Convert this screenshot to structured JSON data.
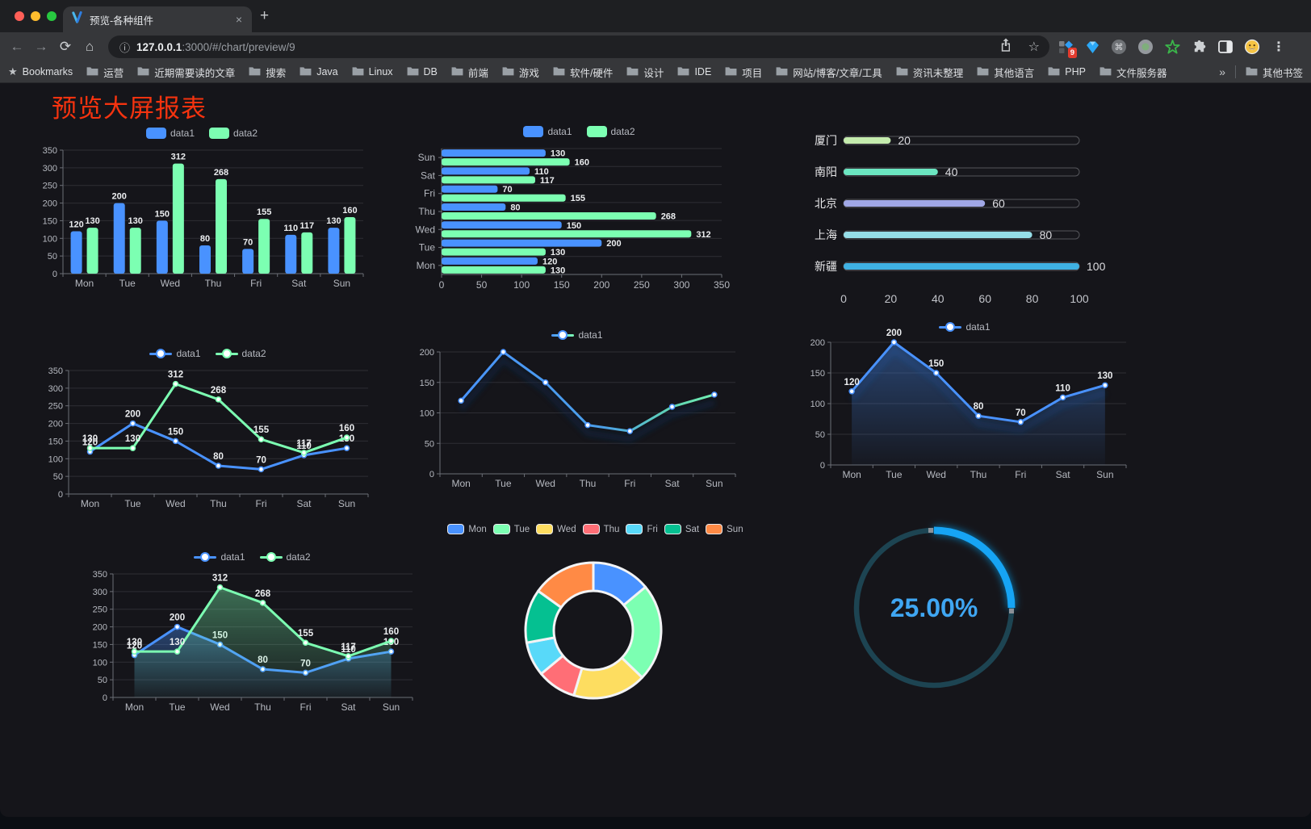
{
  "browser": {
    "tab_title": "预览-各种组件",
    "close_tab_label": "×",
    "new_tab_label": "+",
    "url_host": "127.0.0.1",
    "url_rest": ":3000/#/chart/preview/9",
    "extension_badge": "9",
    "bookmarks_label": "Bookmarks",
    "bookmark_folders": [
      "运营",
      "近期需要读的文章",
      "搜索",
      "Java",
      "Linux",
      "DB",
      "前端",
      "游戏",
      "软件/硬件",
      "设计",
      "IDE",
      "项目",
      "网站/博客/文章/工具",
      "资讯未整理",
      "其他语言",
      "PHP",
      "文件服务器"
    ],
    "overflow_chevron": "»",
    "other_bookmarks": "其他书签"
  },
  "page": {
    "title": "预览大屏报表",
    "title_color": "#f5330f"
  },
  "colors": {
    "data1": "#4992ff",
    "data2": "#7cffb2",
    "axis": "#6b6e76",
    "grid": "#2e2e34",
    "tick_label": "#b6b9c0",
    "value_label": "#eceef0",
    "gauge_progress": "#18a4f4",
    "gauge_track": "#1d4452",
    "gauge_text": "#3fa6f2"
  },
  "chart_data": [
    {
      "id": "grouped-bar",
      "type": "bar",
      "legend_position": "top",
      "grid": true,
      "value_labels": true,
      "categories": [
        "Mon",
        "Tue",
        "Wed",
        "Thu",
        "Fri",
        "Sat",
        "Sun"
      ],
      "series": [
        {
          "name": "data1",
          "color": "#4992ff",
          "values": [
            120,
            200,
            150,
            80,
            70,
            110,
            130
          ]
        },
        {
          "name": "data2",
          "color": "#7cffb2",
          "values": [
            130,
            130,
            312,
            268,
            155,
            117,
            160
          ]
        }
      ],
      "ylim": [
        0,
        350
      ],
      "yticks": [
        0,
        50,
        100,
        150,
        200,
        250,
        300,
        350
      ]
    },
    {
      "id": "horizontal-bar",
      "type": "bar",
      "orientation": "horizontal",
      "legend_position": "top",
      "value_labels": true,
      "categories_top_to_bottom": [
        "Sun",
        "Sat",
        "Fri",
        "Thu",
        "Wed",
        "Tue",
        "Mon"
      ],
      "series": [
        {
          "name": "data1",
          "color": "#4992ff",
          "values_top_to_bottom": [
            130,
            110,
            70,
            80,
            150,
            200,
            120
          ]
        },
        {
          "name": "data2",
          "color": "#7cffb2",
          "values_top_to_bottom": [
            160,
            117,
            155,
            268,
            312,
            130,
            130
          ]
        }
      ],
      "xlim": [
        0,
        350
      ],
      "xticks": [
        0,
        50,
        100,
        150,
        200,
        250,
        300,
        350
      ]
    },
    {
      "id": "progress-bars",
      "type": "bar",
      "style": "progress",
      "value_labels": true,
      "categories": [
        "厦门",
        "南阳",
        "北京",
        "上海",
        "新疆"
      ],
      "values": [
        20,
        40,
        60,
        80,
        100
      ],
      "colors": [
        "#c4ebad",
        "#6be6c1",
        "#a0a7e6",
        "#96dee8",
        "#3fb1e3"
      ],
      "xlim": [
        0,
        100
      ],
      "xticks": [
        0,
        20,
        40,
        60,
        80,
        100
      ]
    },
    {
      "id": "line-two-series",
      "type": "line",
      "legend_position": "top",
      "value_labels": true,
      "categories": [
        "Mon",
        "Tue",
        "Wed",
        "Thu",
        "Fri",
        "Sat",
        "Sun"
      ],
      "series": [
        {
          "name": "data1",
          "color": "#4992ff",
          "values": [
            120,
            200,
            150,
            80,
            70,
            110,
            130
          ]
        },
        {
          "name": "data2",
          "color": "#7cffb2",
          "values": [
            130,
            130,
            312,
            268,
            155,
            117,
            160
          ]
        }
      ],
      "ylim": [
        0,
        350
      ],
      "yticks": [
        0,
        50,
        100,
        150,
        200,
        250,
        300,
        350
      ]
    },
    {
      "id": "line-gradient",
      "type": "line",
      "legend_position": "top",
      "value_labels": false,
      "shadow": true,
      "categories": [
        "Mon",
        "Tue",
        "Wed",
        "Thu",
        "Fri",
        "Sat",
        "Sun"
      ],
      "series": [
        {
          "name": "data1",
          "color": "#4992ff",
          "color_gradient": [
            "#4992ff",
            "#4b9fe8",
            "#5fd3b4",
            "#7cffb2"
          ],
          "values": [
            120,
            200,
            150,
            80,
            70,
            110,
            130
          ]
        }
      ],
      "ylim": [
        0,
        200
      ],
      "yticks": [
        0,
        50,
        100,
        150,
        200
      ]
    },
    {
      "id": "area-single",
      "type": "area",
      "legend_position": "top",
      "value_labels": true,
      "shadow": true,
      "categories": [
        "Mon",
        "Tue",
        "Wed",
        "Thu",
        "Fri",
        "Sat",
        "Sun"
      ],
      "series": [
        {
          "name": "data1",
          "color": "#4992ff",
          "values": [
            120,
            200,
            150,
            80,
            70,
            110,
            130
          ]
        }
      ],
      "ylim": [
        0,
        200
      ],
      "yticks": [
        0,
        50,
        100,
        150,
        200
      ]
    },
    {
      "id": "area-two-series",
      "type": "area",
      "legend_position": "top",
      "value_labels": true,
      "categories": [
        "Mon",
        "Tue",
        "Wed",
        "Thu",
        "Fri",
        "Sat",
        "Sun"
      ],
      "series": [
        {
          "name": "data1",
          "color": "#4992ff",
          "values": [
            120,
            200,
            150,
            80,
            70,
            110,
            130
          ]
        },
        {
          "name": "data2",
          "color": "#7cffb2",
          "values": [
            130,
            130,
            312,
            268,
            155,
            117,
            160
          ]
        }
      ],
      "ylim": [
        0,
        350
      ],
      "yticks": [
        0,
        50,
        100,
        150,
        200,
        250,
        300,
        350
      ]
    },
    {
      "id": "donut",
      "type": "pie",
      "legend_position": "top",
      "inner_radius_ratio": 0.58,
      "categories": [
        "Mon",
        "Tue",
        "Wed",
        "Thu",
        "Fri",
        "Sat",
        "Sun"
      ],
      "values": [
        120,
        200,
        150,
        80,
        70,
        110,
        130
      ],
      "colors": [
        "#4992ff",
        "#7cffb2",
        "#fddd60",
        "#ff6e76",
        "#58d9f9",
        "#05c091",
        "#ff8a45"
      ]
    },
    {
      "id": "gauge",
      "type": "gauge",
      "value": 25,
      "label": "25.00%",
      "color": "#18a4f4",
      "track_color": "#1d4452",
      "text_color": "#3fa6f2"
    }
  ]
}
